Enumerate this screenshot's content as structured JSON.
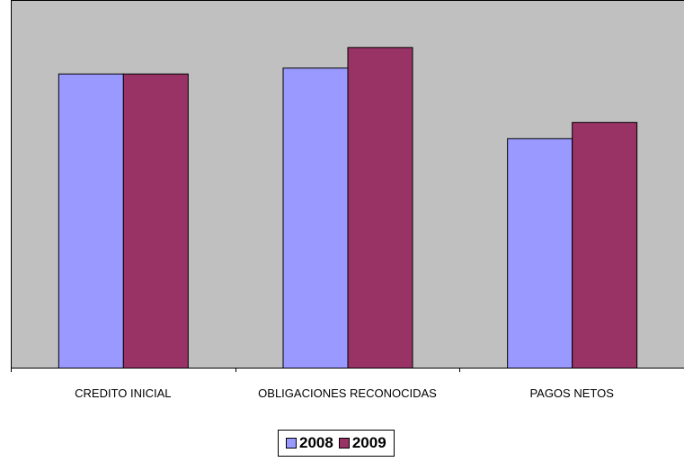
{
  "chart_data": {
    "type": "bar",
    "categories": [
      "CREDITO INICIAL",
      "OBLIGACIONES RECONOCIDAS",
      "PAGOS NETOS"
    ],
    "series": [
      {
        "name": "2008",
        "values": [
          100,
          102,
          78
        ],
        "color": "#9999ff"
      },
      {
        "name": "2009",
        "values": [
          100,
          109,
          83.5
        ],
        "color": "#993366"
      }
    ],
    "ylim": [
      0,
      125
    ],
    "plot_background": "#c0c0c0",
    "grid": false,
    "legend_position": "bottom"
  }
}
